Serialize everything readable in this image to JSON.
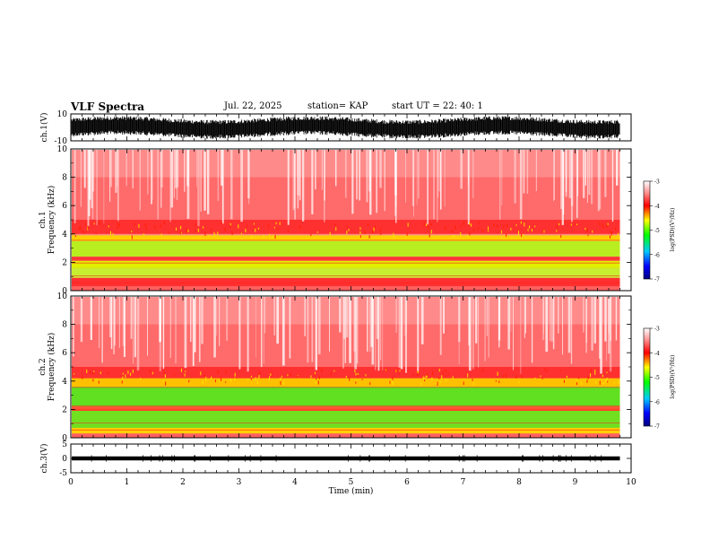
{
  "header": {
    "title": "VLF Spectra",
    "date": "Jul. 22, 2025",
    "station": "station= KAP",
    "start_ut": "start UT = 22: 40: 1"
  },
  "colors": {
    "trace": "#000000",
    "spec_low": "#ffffff",
    "spec_high": "#ff2020"
  },
  "chart_data": [
    {
      "type": "line",
      "panel": "ch1-waveform",
      "ylabel": "ch.1(V)",
      "ylim": [
        -10,
        10
      ],
      "yticks": [
        "10",
        "-10"
      ],
      "xlim": [
        0,
        10
      ],
      "data_extent_min": 9.8,
      "description_values": {
        "amplitude_approx": 7
      }
    },
    {
      "type": "heatmap",
      "panel": "ch1-spectrogram",
      "ylabel": "ch.1",
      "ylabel2": "Frequency (kHz)",
      "ylim": [
        0,
        10
      ],
      "yticks": [
        "0",
        "2",
        "4",
        "6",
        "8",
        "10"
      ],
      "xlim": [
        0,
        10
      ],
      "colorbar": {
        "label": "log(PSD)(V²/Hz)",
        "range": [
          -7,
          -3
        ],
        "ticks": [
          "-3",
          "-4",
          "-5",
          "-6",
          "-7"
        ]
      }
    },
    {
      "type": "heatmap",
      "panel": "ch2-spectrogram",
      "ylabel": "ch.2",
      "ylabel2": "Frequency (kHz)",
      "ylim": [
        0,
        10
      ],
      "yticks": [
        "0",
        "2",
        "4",
        "6",
        "8",
        "10"
      ],
      "xlim": [
        0,
        10
      ],
      "colorbar": {
        "label": "log(PSD)(V²/Hz)",
        "range": [
          -7,
          -3
        ],
        "ticks": [
          "-3",
          "-4",
          "-5",
          "-6",
          "-7"
        ]
      }
    },
    {
      "type": "line",
      "panel": "ch3-waveform",
      "ylabel": "ch.3(V)",
      "ylim": [
        -5,
        5
      ],
      "yticks": [
        "5",
        "0",
        "-5"
      ],
      "xlim": [
        0,
        10
      ],
      "xticks": [
        "0",
        "1",
        "2",
        "3",
        "4",
        "5",
        "6",
        "7",
        "8",
        "9",
        "10"
      ],
      "xlabel": "Time (min)",
      "data_extent_min": 9.8,
      "description_values": {
        "level_approx": 0
      }
    }
  ]
}
